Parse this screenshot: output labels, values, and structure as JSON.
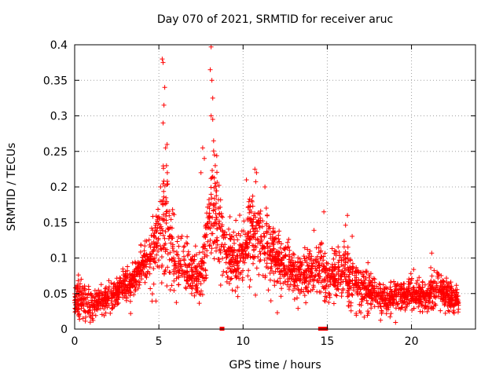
{
  "chart_data": {
    "type": "scatter",
    "title": "Day 070 of 2021, SRMTID for receiver aruc",
    "xlabel": "GPS time / hours",
    "ylabel": "SRMTID / TECUs",
    "xlim": [
      0,
      23.8
    ],
    "ylim": [
      0,
      0.4
    ],
    "xticks": [
      0,
      5,
      10,
      15,
      20
    ],
    "yticks": [
      0,
      0.05,
      0.1,
      0.15,
      0.2,
      0.25,
      0.3,
      0.35,
      0.4
    ],
    "ytick_labels": [
      "0",
      "0.05",
      "0.1",
      "0.15",
      "0.2",
      "0.25",
      "0.3",
      "0.35",
      "0.4"
    ],
    "grid": true,
    "marker": "+",
    "color": "#ff0000",
    "series": [
      {
        "name": "SRMTID",
        "profile": [
          [
            0.0,
            0.04,
            0.025
          ],
          [
            1.0,
            0.035,
            0.02
          ],
          [
            2.0,
            0.045,
            0.015
          ],
          [
            3.0,
            0.06,
            0.02
          ],
          [
            4.0,
            0.085,
            0.025
          ],
          [
            4.5,
            0.1,
            0.03
          ],
          [
            5.0,
            0.13,
            0.06
          ],
          [
            5.5,
            0.15,
            0.08
          ],
          [
            6.0,
            0.09,
            0.035
          ],
          [
            7.0,
            0.08,
            0.03
          ],
          [
            7.5,
            0.07,
            0.03
          ],
          [
            8.0,
            0.15,
            0.06
          ],
          [
            8.5,
            0.16,
            0.07
          ],
          [
            9.0,
            0.1,
            0.04
          ],
          [
            10.0,
            0.1,
            0.04
          ],
          [
            10.5,
            0.14,
            0.05
          ],
          [
            11.0,
            0.13,
            0.05
          ],
          [
            12.0,
            0.1,
            0.04
          ],
          [
            13.0,
            0.08,
            0.03
          ],
          [
            14.0,
            0.08,
            0.03
          ],
          [
            14.5,
            0.09,
            0.04
          ],
          [
            15.0,
            0.07,
            0.03
          ],
          [
            16.0,
            0.08,
            0.04
          ],
          [
            17.0,
            0.06,
            0.03
          ],
          [
            18.0,
            0.045,
            0.02
          ],
          [
            19.0,
            0.045,
            0.02
          ],
          [
            20.0,
            0.05,
            0.02
          ],
          [
            21.0,
            0.045,
            0.02
          ],
          [
            21.5,
            0.06,
            0.025
          ],
          [
            22.0,
            0.05,
            0.02
          ],
          [
            22.8,
            0.04,
            0.015
          ]
        ],
        "peaks": [
          [
            5.2,
            0.38
          ],
          [
            5.25,
            0.375
          ],
          [
            5.35,
            0.34
          ],
          [
            5.3,
            0.315
          ],
          [
            5.25,
            0.29
          ],
          [
            5.4,
            0.255
          ],
          [
            5.45,
            0.23
          ],
          [
            5.5,
            0.22
          ],
          [
            5.1,
            0.2
          ],
          [
            7.6,
            0.255
          ],
          [
            7.7,
            0.24
          ],
          [
            7.5,
            0.22
          ],
          [
            8.1,
            0.397
          ],
          [
            8.05,
            0.365
          ],
          [
            8.15,
            0.35
          ],
          [
            8.2,
            0.325
          ],
          [
            8.1,
            0.3
          ],
          [
            8.2,
            0.295
          ],
          [
            8.25,
            0.265
          ],
          [
            8.3,
            0.245
          ],
          [
            8.35,
            0.23
          ],
          [
            10.7,
            0.225
          ],
          [
            10.8,
            0.22
          ],
          [
            10.2,
            0.21
          ],
          [
            11.3,
            0.2
          ],
          [
            14.8,
            0.165
          ],
          [
            16.2,
            0.16
          ],
          [
            21.2,
            0.107
          ]
        ],
        "point_count": 2600,
        "seed": 70
      }
    ],
    "zero_markers_x": [
      8.75,
      14.6,
      14.75,
      14.9
    ]
  }
}
